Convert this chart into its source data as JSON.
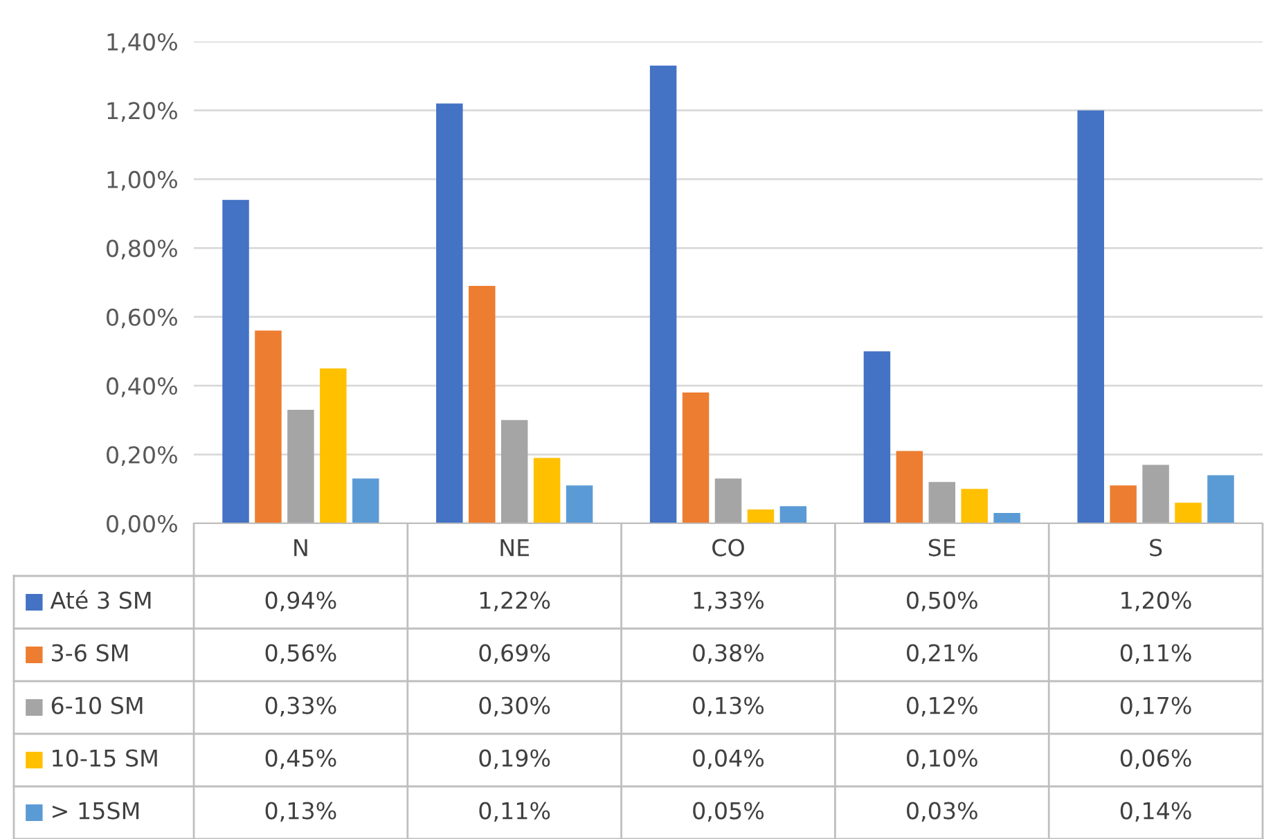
{
  "chart_data": {
    "type": "bar",
    "categories": [
      "N",
      "NE",
      "CO",
      "SE",
      "S"
    ],
    "series": [
      {
        "name": "Até 3 SM",
        "color": "#4472c4",
        "values": [
          0.94,
          1.22,
          1.33,
          0.5,
          1.2
        ],
        "value_labels": [
          "0,94%",
          "1,22%",
          "1,33%",
          "0,50%",
          "1,20%"
        ]
      },
      {
        "name": "3-6 SM",
        "color": "#ed7d31",
        "values": [
          0.56,
          0.69,
          0.38,
          0.21,
          0.11
        ],
        "value_labels": [
          "0,56%",
          "0,69%",
          "0,38%",
          "0,21%",
          "0,11%"
        ]
      },
      {
        "name": "6-10 SM",
        "color": "#a5a5a5",
        "values": [
          0.33,
          0.3,
          0.13,
          0.12,
          0.17
        ],
        "value_labels": [
          "0,33%",
          "0,30%",
          "0,13%",
          "0,12%",
          "0,17%"
        ]
      },
      {
        "name": "10-15 SM",
        "color": "#ffc000",
        "values": [
          0.45,
          0.19,
          0.04,
          0.1,
          0.06
        ],
        "value_labels": [
          "0,45%",
          "0,19%",
          "0,04%",
          "0,10%",
          "0,06%"
        ]
      },
      {
        "name": "> 15SM",
        "color": "#5b9bd5",
        "values": [
          0.13,
          0.11,
          0.05,
          0.03,
          0.14
        ],
        "value_labels": [
          "0,13%",
          "0,11%",
          "0,05%",
          "0,03%",
          "0,14%"
        ]
      }
    ],
    "ylim": [
      0,
      1.4
    ],
    "yticks": [
      {
        "value": 0,
        "label": "0,00%"
      },
      {
        "value": 0.2,
        "label": "0,20%"
      },
      {
        "value": 0.4,
        "label": "0,40%"
      },
      {
        "value": 0.6,
        "label": "0,60%"
      },
      {
        "value": 0.8,
        "label": "0,80%"
      },
      {
        "value": 1.0,
        "label": "1,00%"
      },
      {
        "value": 1.2,
        "label": "1,20%"
      },
      {
        "value": 1.4,
        "label": "1,40%"
      }
    ],
    "grid": "y",
    "legend": "bottom"
  }
}
